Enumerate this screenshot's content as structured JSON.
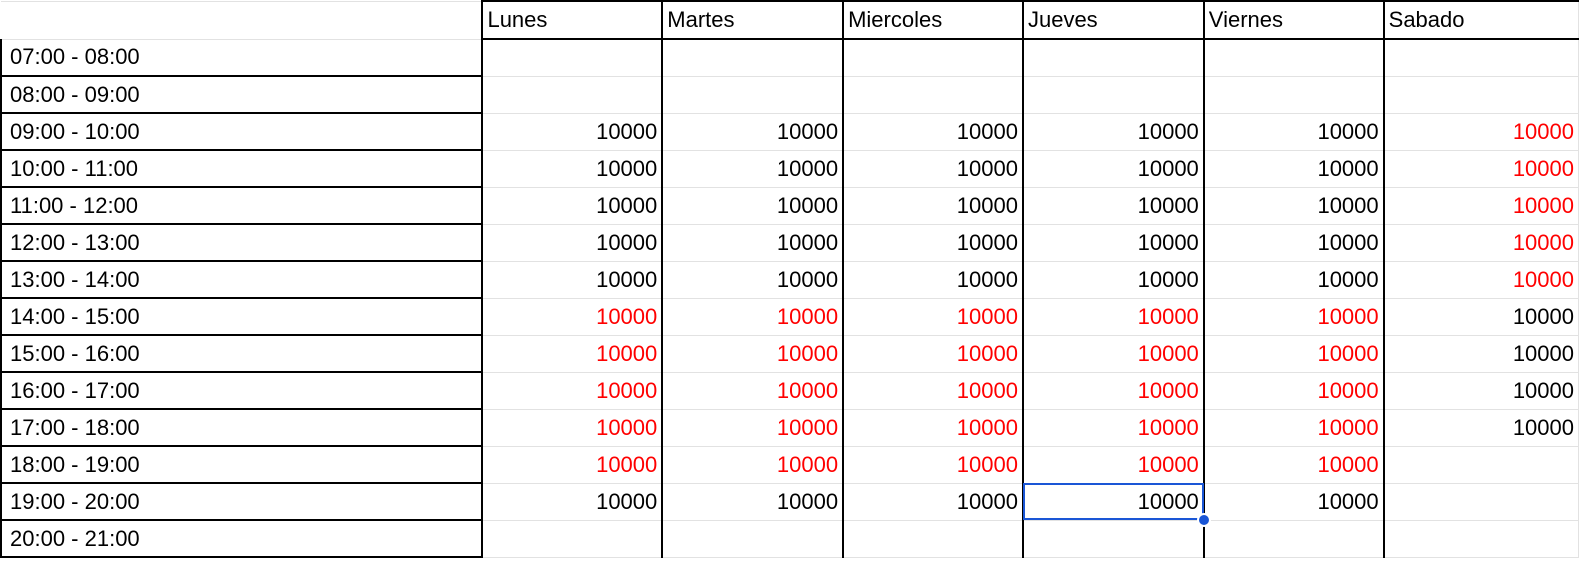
{
  "sheet": {
    "days": [
      "Lunes",
      "Martes",
      "Miercoles",
      "Jueves",
      "Viernes",
      "Sabado"
    ],
    "rows": [
      {
        "time": "07:00 - 08:00",
        "values": [
          "",
          "",
          "",
          "",
          "",
          ""
        ],
        "red": [
          false,
          false,
          false,
          false,
          false,
          false
        ]
      },
      {
        "time": "08:00 - 09:00",
        "values": [
          "",
          "",
          "",
          "",
          "",
          ""
        ],
        "red": [
          false,
          false,
          false,
          false,
          false,
          false
        ]
      },
      {
        "time": "09:00 - 10:00",
        "values": [
          "10000",
          "10000",
          "10000",
          "10000",
          "10000",
          "10000"
        ],
        "red": [
          false,
          false,
          false,
          false,
          false,
          true
        ]
      },
      {
        "time": "10:00 - 11:00",
        "values": [
          "10000",
          "10000",
          "10000",
          "10000",
          "10000",
          "10000"
        ],
        "red": [
          false,
          false,
          false,
          false,
          false,
          true
        ]
      },
      {
        "time": "11:00 - 12:00",
        "values": [
          "10000",
          "10000",
          "10000",
          "10000",
          "10000",
          "10000"
        ],
        "red": [
          false,
          false,
          false,
          false,
          false,
          true
        ]
      },
      {
        "time": "12:00 - 13:00",
        "values": [
          "10000",
          "10000",
          "10000",
          "10000",
          "10000",
          "10000"
        ],
        "red": [
          false,
          false,
          false,
          false,
          false,
          true
        ]
      },
      {
        "time": "13:00 - 14:00",
        "values": [
          "10000",
          "10000",
          "10000",
          "10000",
          "10000",
          "10000"
        ],
        "red": [
          false,
          false,
          false,
          false,
          false,
          true
        ]
      },
      {
        "time": "14:00 - 15:00",
        "values": [
          "10000",
          "10000",
          "10000",
          "10000",
          "10000",
          "10000"
        ],
        "red": [
          true,
          true,
          true,
          true,
          true,
          false
        ]
      },
      {
        "time": "15:00 - 16:00",
        "values": [
          "10000",
          "10000",
          "10000",
          "10000",
          "10000",
          "10000"
        ],
        "red": [
          true,
          true,
          true,
          true,
          true,
          false
        ]
      },
      {
        "time": "16:00 - 17:00",
        "values": [
          "10000",
          "10000",
          "10000",
          "10000",
          "10000",
          "10000"
        ],
        "red": [
          true,
          true,
          true,
          true,
          true,
          false
        ]
      },
      {
        "time": "17:00 - 18:00",
        "values": [
          "10000",
          "10000",
          "10000",
          "10000",
          "10000",
          "10000"
        ],
        "red": [
          true,
          true,
          true,
          true,
          true,
          false
        ]
      },
      {
        "time": "18:00 - 19:00",
        "values": [
          "10000",
          "10000",
          "10000",
          "10000",
          "10000",
          ""
        ],
        "red": [
          true,
          true,
          true,
          true,
          true,
          false
        ]
      },
      {
        "time": "19:00 - 20:00",
        "values": [
          "10000",
          "10000",
          "10000",
          "10000",
          "10000",
          ""
        ],
        "red": [
          false,
          false,
          false,
          false,
          false,
          false
        ]
      },
      {
        "time": "20:00 - 21:00",
        "values": [
          "",
          "",
          "",
          "",
          "",
          ""
        ],
        "red": [
          false,
          false,
          false,
          false,
          false,
          false
        ]
      }
    ],
    "selected_cell": {
      "row": 12,
      "col": 3
    },
    "colors": {
      "text": "#000000",
      "red_text": "#ff0000",
      "selection": "#1a56d6",
      "gridline": "#e2e2e2",
      "border": "#000000"
    }
  }
}
